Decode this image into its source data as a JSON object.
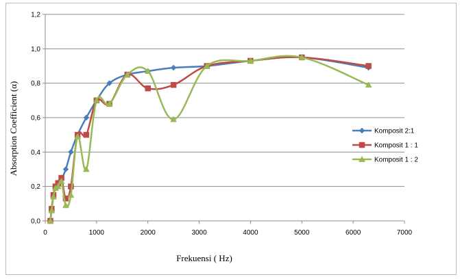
{
  "chart_data": {
    "type": "line",
    "xlabel": "Frekuensi ( Hz)",
    "ylabel": "Absorption Coefficient (α)",
    "xlim": [
      0,
      7000
    ],
    "ylim": [
      0,
      1.2
    ],
    "x_ticks": [
      "0",
      "1000",
      "2000",
      "3000",
      "4000",
      "5000",
      "6000",
      "7000"
    ],
    "y_ticks": [
      "0,0",
      "0,2",
      "0,4",
      "0,6",
      "0,8",
      "1,0",
      "1,2"
    ],
    "grid": "horizontal",
    "legend_position": "right",
    "series": [
      {
        "name": "Komposit 2:1",
        "color": "#4a7ebb",
        "marker": "diamond",
        "points": [
          [
            100,
            0.0
          ],
          [
            125,
            0.07
          ],
          [
            160,
            0.15
          ],
          [
            200,
            0.2
          ],
          [
            250,
            0.21
          ],
          [
            315,
            0.24
          ],
          [
            400,
            0.3
          ],
          [
            500,
            0.4
          ],
          [
            630,
            0.5
          ],
          [
            800,
            0.6
          ],
          [
            1000,
            0.7
          ],
          [
            1250,
            0.8
          ],
          [
            1600,
            0.85
          ],
          [
            2000,
            0.87
          ],
          [
            2500,
            0.89
          ],
          [
            3150,
            0.9
          ],
          [
            4000,
            0.93
          ],
          [
            5000,
            0.95
          ],
          [
            6300,
            0.89
          ]
        ]
      },
      {
        "name": "Komposit 1 : 1",
        "color": "#be4b48",
        "marker": "square",
        "points": [
          [
            100,
            0.0
          ],
          [
            125,
            0.07
          ],
          [
            160,
            0.15
          ],
          [
            200,
            0.2
          ],
          [
            250,
            0.22
          ],
          [
            315,
            0.25
          ],
          [
            400,
            0.13
          ],
          [
            500,
            0.2
          ],
          [
            630,
            0.5
          ],
          [
            800,
            0.5
          ],
          [
            1000,
            0.7
          ],
          [
            1250,
            0.68
          ],
          [
            1600,
            0.85
          ],
          [
            2000,
            0.77
          ],
          [
            2500,
            0.79
          ],
          [
            3150,
            0.9
          ],
          [
            4000,
            0.93
          ],
          [
            5000,
            0.95
          ],
          [
            6300,
            0.9
          ]
        ]
      },
      {
        "name": "Komposit 1 : 2",
        "color": "#98b954",
        "marker": "triangle",
        "points": [
          [
            100,
            0.0
          ],
          [
            125,
            0.06
          ],
          [
            160,
            0.14
          ],
          [
            200,
            0.19
          ],
          [
            250,
            0.2
          ],
          [
            315,
            0.23
          ],
          [
            400,
            0.09
          ],
          [
            500,
            0.15
          ],
          [
            630,
            0.49
          ],
          [
            800,
            0.3
          ],
          [
            1000,
            0.7
          ],
          [
            1250,
            0.68
          ],
          [
            1600,
            0.85
          ],
          [
            2000,
            0.87
          ],
          [
            2500,
            0.59
          ],
          [
            3150,
            0.9
          ],
          [
            4000,
            0.93
          ],
          [
            5000,
            0.95
          ],
          [
            6300,
            0.79
          ]
        ]
      }
    ]
  }
}
